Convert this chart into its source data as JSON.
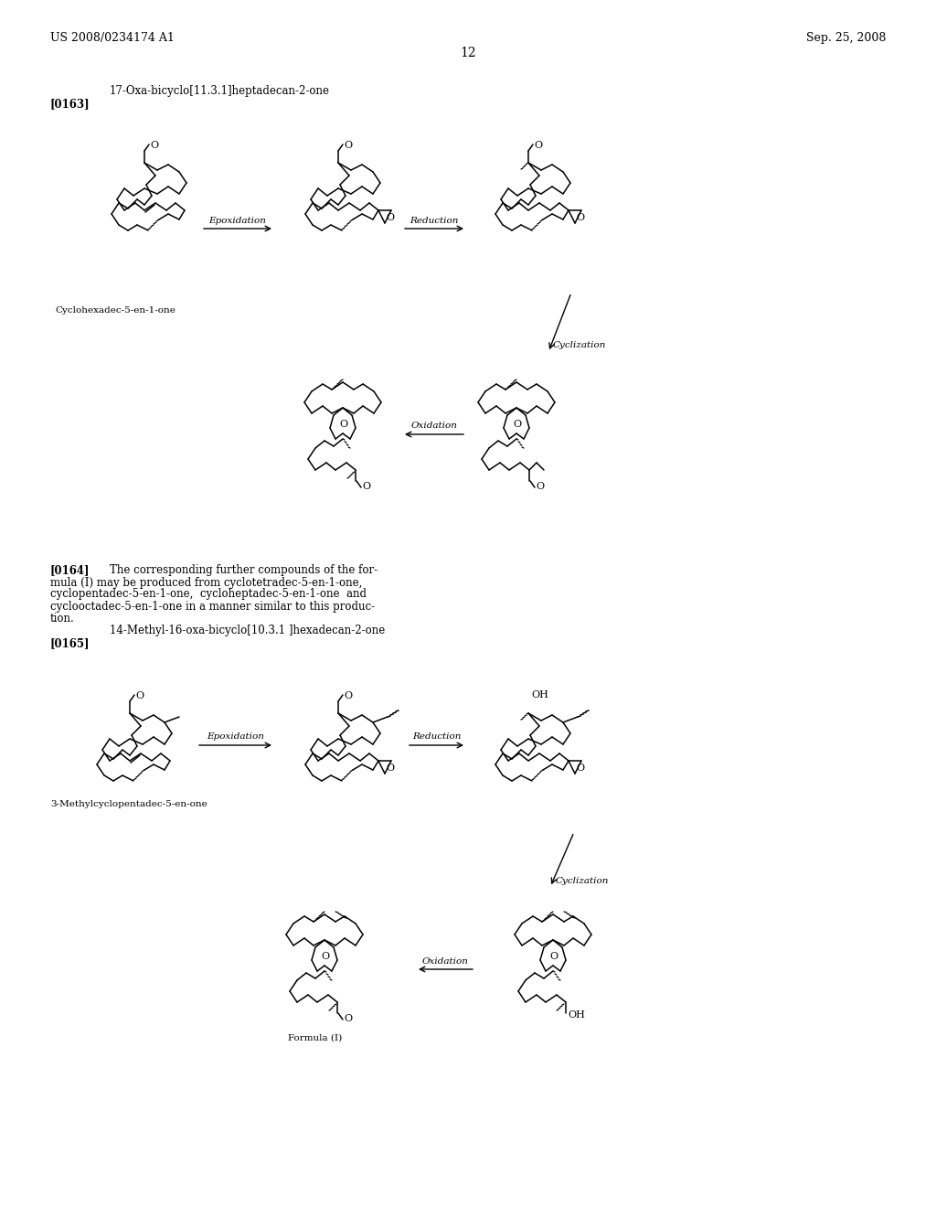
{
  "page_header_left": "US 2008/0234174 A1",
  "page_header_right": "Sep. 25, 2008",
  "page_number": "12",
  "compound1_title": "17-Oxa-bicyclo[11.3.1]heptadecan-2-one",
  "label163": "[0163]",
  "label164": "[0164]",
  "label165": "[0165]",
  "text164_1": "[0164]   The corresponding further compounds of the for-",
  "text164_2": "mula (I) may be produced from cyclotetradec-5-en-1-one,",
  "text164_3": "cyclopentadec-5-en-1-one,  cycloheptadec-5-en-1-one  and",
  "text164_4": "cyclooctadec-5-en-1-one in a manner similar to this produc-",
  "text164_5": "tion.",
  "compound2_title": "14-Methyl-16-oxa-bicyclo[10.3.1 ]hexadecan-2-one",
  "label_mol1": "Cyclohexadec-5-en-1-one",
  "label_mol2": "3-Methylcyclopentadec-5-en-one",
  "label_formula": "Formula (I)",
  "background": "#ffffff"
}
